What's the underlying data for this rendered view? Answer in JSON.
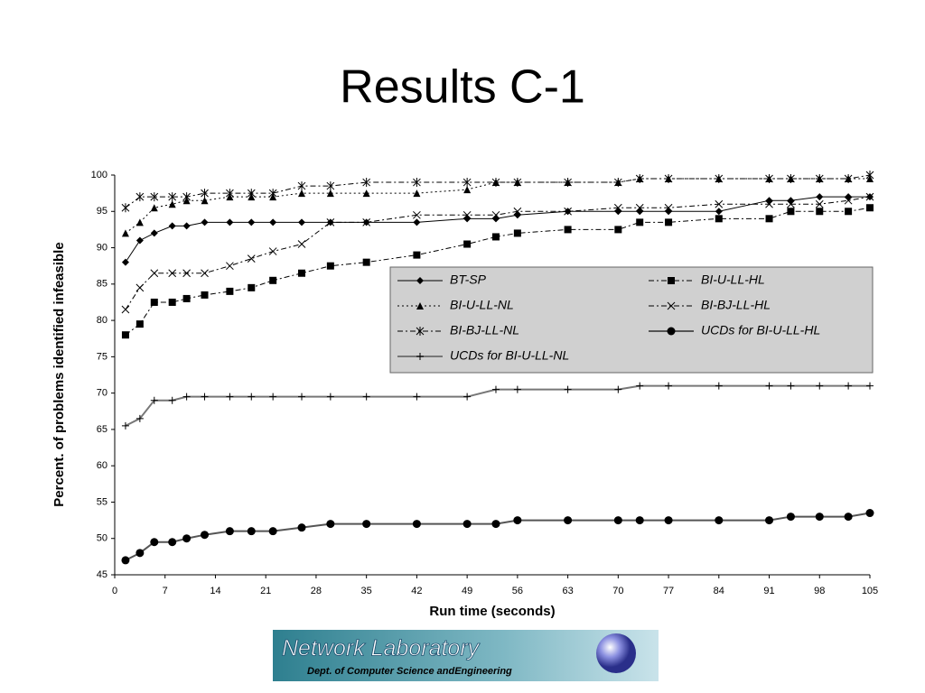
{
  "slide_title": "Results C-1",
  "logo": {
    "title": "Network Laboratory",
    "subtitle": "Dept. of Computer Science andEngineering"
  },
  "chart_data": {
    "type": "line",
    "x_label": "Run time (seconds)",
    "y_label": "Percent. of problems identified infeasible",
    "xlim": [
      0,
      105
    ],
    "ylim": [
      45,
      100
    ],
    "xticks": [
      0,
      7,
      14,
      21,
      28,
      35,
      42,
      49,
      56,
      63,
      70,
      77,
      84,
      91,
      98,
      105
    ],
    "yticks": [
      45,
      50,
      55,
      60,
      65,
      70,
      75,
      80,
      85,
      90,
      95,
      100
    ],
    "x": [
      1.5,
      3.5,
      5.5,
      8,
      10,
      12.5,
      16,
      19,
      22,
      26,
      30,
      35,
      42,
      49,
      53,
      56,
      63,
      70,
      73,
      77,
      84,
      91,
      94,
      98,
      102,
      105
    ],
    "series": [
      {
        "name": "BT-SP",
        "color": "#000000",
        "marker": "diamond",
        "dash": "solid",
        "values": [
          88,
          91,
          92,
          93,
          93,
          93.5,
          93.5,
          93.5,
          93.5,
          93.5,
          93.5,
          93.5,
          93.5,
          94,
          94,
          94.5,
          95,
          95,
          95,
          95,
          95,
          96.5,
          96.5,
          97,
          97,
          97
        ]
      },
      {
        "name": "BI-U-LL-HL",
        "color": "#000000",
        "marker": "square",
        "dash": "dashdot",
        "values": [
          78,
          79.5,
          82.5,
          82.5,
          83,
          83.5,
          84,
          84.5,
          85.5,
          86.5,
          87.5,
          88,
          89,
          90.5,
          91.5,
          92,
          92.5,
          92.5,
          93.5,
          93.5,
          94,
          94,
          95,
          95,
          95,
          95.5
        ]
      },
      {
        "name": "BI-U-LL-NL",
        "color": "#000000",
        "marker": "triangle",
        "dash": "dotted",
        "values": [
          92,
          93.5,
          95.5,
          96,
          96.5,
          96.5,
          97,
          97,
          97,
          97.5,
          97.5,
          97.5,
          97.5,
          98,
          99,
          99,
          99,
          99,
          99.5,
          99.5,
          99.5,
          99.5,
          99.5,
          99.5,
          99.5,
          99.5
        ]
      },
      {
        "name": "BI-BJ-LL-HL",
        "color": "#000000",
        "marker": "x",
        "dash": "dashdot",
        "values": [
          81.5,
          84.5,
          86.5,
          86.5,
          86.5,
          86.5,
          87.5,
          88.5,
          89.5,
          90.5,
          93.5,
          93.5,
          94.5,
          94.5,
          94.5,
          95,
          95,
          95.5,
          95.5,
          95.5,
          96,
          96,
          96,
          96,
          96.5,
          97
        ]
      },
      {
        "name": "BI-BJ-LL-NL",
        "color": "#000000",
        "marker": "star",
        "dash": "dashdot",
        "values": [
          95.5,
          97,
          97,
          97,
          97,
          97.5,
          97.5,
          97.5,
          97.5,
          98.5,
          98.5,
          99,
          99,
          99,
          99,
          99,
          99,
          99,
          99.5,
          99.5,
          99.5,
          99.5,
          99.5,
          99.5,
          99.5,
          100
        ]
      },
      {
        "name": "UCDs for BI-U-LL-HL",
        "color": "#555555",
        "marker": "circle",
        "dash": "solid",
        "values": [
          47,
          48,
          49.5,
          49.5,
          50,
          50.5,
          51,
          51,
          51,
          51.5,
          52,
          52,
          52,
          52,
          52,
          52.5,
          52.5,
          52.5,
          52.5,
          52.5,
          52.5,
          52.5,
          53,
          53,
          53,
          53.5
        ]
      },
      {
        "name": "UCDs for BI-U-LL-NL",
        "color": "#777777",
        "marker": "plus",
        "dash": "solid",
        "values": [
          65.5,
          66.5,
          69,
          69,
          69.5,
          69.5,
          69.5,
          69.5,
          69.5,
          69.5,
          69.5,
          69.5,
          69.5,
          69.5,
          70.5,
          70.5,
          70.5,
          70.5,
          71,
          71,
          71,
          71,
          71,
          71,
          71,
          71
        ]
      }
    ]
  }
}
